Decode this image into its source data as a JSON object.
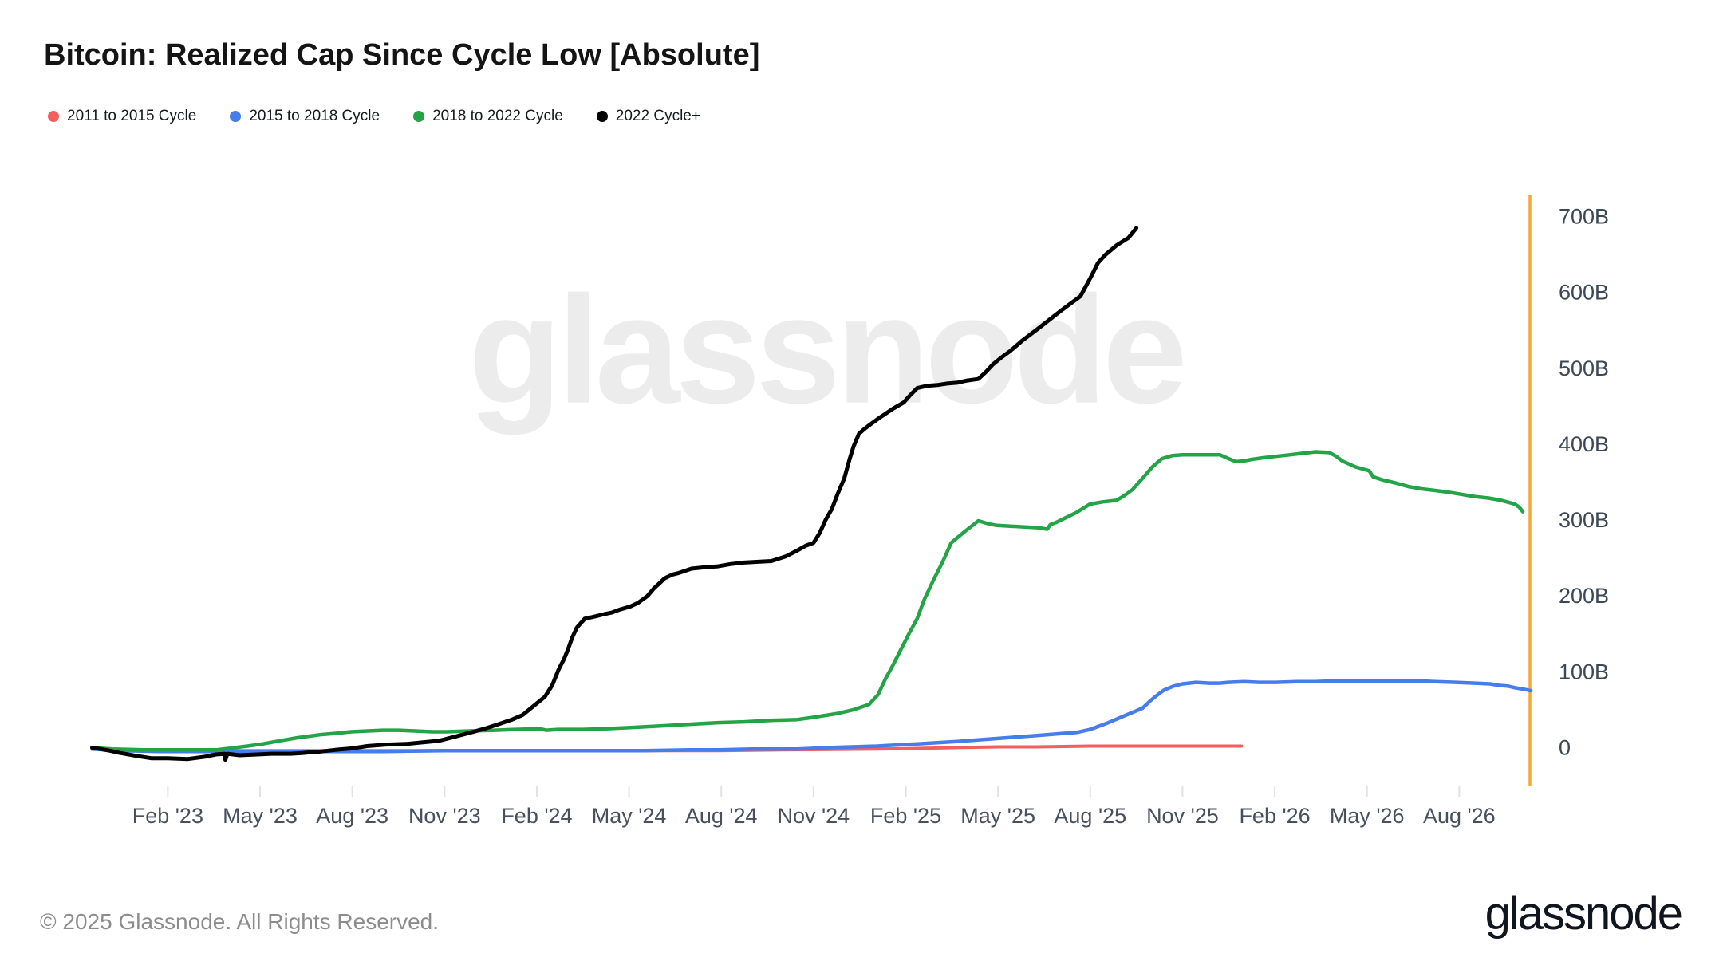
{
  "title": "Bitcoin: Realized Cap Since Cycle Low [Absolute]",
  "watermark": "glassnode",
  "footer": {
    "copyright": "© 2025 Glassnode. All Rights Reserved.",
    "logo": "glassnode"
  },
  "legend": [
    {
      "label": "2011 to 2015 Cycle",
      "color": "#f15f5f"
    },
    {
      "label": "2015 to 2018 Cycle",
      "color": "#477ceb"
    },
    {
      "label": "2018 to 2022 Cycle",
      "color": "#22a447"
    },
    {
      "label": "2022 Cycle+",
      "color": "#000000"
    }
  ],
  "chart_data": {
    "type": "line",
    "title": "Bitcoin: Realized Cap Since Cycle Low [Absolute]",
    "x_unit": "months since Jan 2023 (Feb '23 = 1), cycles time-aligned from cycle low",
    "y_unit": "USD billions above cycle low",
    "xlim": [
      -1.5,
      45.3
    ],
    "ylim": [
      -50,
      728
    ],
    "grid": false,
    "legend_position": "top-left",
    "axis_color": "#f5a73b",
    "tick_color": "#e2e2e2",
    "x_ticks": [
      {
        "t": 1,
        "label": "Feb '23"
      },
      {
        "t": 4,
        "label": "May '23"
      },
      {
        "t": 7,
        "label": "Aug '23"
      },
      {
        "t": 10,
        "label": "Nov '23"
      },
      {
        "t": 13,
        "label": "Feb '24"
      },
      {
        "t": 16,
        "label": "May '24"
      },
      {
        "t": 19,
        "label": "Aug '24"
      },
      {
        "t": 22,
        "label": "Nov '24"
      },
      {
        "t": 25,
        "label": "Feb '25"
      },
      {
        "t": 28,
        "label": "May '25"
      },
      {
        "t": 31,
        "label": "Aug '25"
      },
      {
        "t": 34,
        "label": "Nov '25"
      },
      {
        "t": 37,
        "label": "Feb '26"
      },
      {
        "t": 40,
        "label": "May '26"
      },
      {
        "t": 43,
        "label": "Aug '26"
      }
    ],
    "y_ticks": [
      {
        "v": 0,
        "label": "0"
      },
      {
        "v": 100,
        "label": "100B"
      },
      {
        "v": 200,
        "label": "200B"
      },
      {
        "v": 300,
        "label": "300B"
      },
      {
        "v": 400,
        "label": "400B"
      },
      {
        "v": 500,
        "label": "500B"
      },
      {
        "v": 600,
        "label": "600B"
      },
      {
        "v": 700,
        "label": "700B"
      }
    ],
    "series": [
      {
        "name": "2011 to 2015 Cycle",
        "color": "#f15f5f",
        "width": 4,
        "points": [
          [
            -1.46,
            -2
          ],
          [
            0,
            -3
          ],
          [
            1.5,
            -4
          ],
          [
            3.33,
            -4
          ],
          [
            6,
            -4
          ],
          [
            8,
            -4
          ],
          [
            11.11,
            -4
          ],
          [
            14,
            -4
          ],
          [
            16,
            -4
          ],
          [
            18.89,
            -4
          ],
          [
            21,
            -3
          ],
          [
            24.07,
            -2
          ],
          [
            25.5,
            -1
          ],
          [
            26.66,
            0
          ],
          [
            28,
            1
          ],
          [
            29.26,
            1
          ],
          [
            31,
            2
          ],
          [
            31.85,
            2
          ],
          [
            33,
            2
          ],
          [
            34.44,
            2
          ],
          [
            35.92,
            2
          ]
        ]
      },
      {
        "name": "2015 to 2018 Cycle",
        "color": "#477ceb",
        "width": 4.5,
        "points": [
          [
            -1.46,
            -2
          ],
          [
            -0.5,
            -4
          ],
          [
            0.74,
            -5
          ],
          [
            2,
            -5
          ],
          [
            4,
            -5
          ],
          [
            5.93,
            -5
          ],
          [
            8,
            -5
          ],
          [
            10,
            -4
          ],
          [
            12,
            -4
          ],
          [
            13.7,
            -4
          ],
          [
            15,
            -4
          ],
          [
            16.5,
            -4
          ],
          [
            18,
            -3
          ],
          [
            18.89,
            -3
          ],
          [
            20,
            -2
          ],
          [
            21.48,
            -2
          ],
          [
            22.5,
            0
          ],
          [
            24.07,
            2
          ],
          [
            25.37,
            5
          ],
          [
            26.66,
            8
          ],
          [
            27.3,
            10
          ],
          [
            27.96,
            12
          ],
          [
            28.6,
            14
          ],
          [
            29.26,
            16
          ],
          [
            29.9,
            18
          ],
          [
            30.55,
            20
          ],
          [
            31,
            24
          ],
          [
            31.59,
            33
          ],
          [
            32.11,
            42
          ],
          [
            32.7,
            52
          ],
          [
            32.96,
            62
          ],
          [
            33.2,
            70
          ],
          [
            33.4,
            76
          ],
          [
            33.7,
            81
          ],
          [
            34,
            84
          ],
          [
            34.44,
            86
          ],
          [
            34.89,
            85
          ],
          [
            35.2,
            85
          ],
          [
            35.48,
            86
          ],
          [
            36,
            87
          ],
          [
            36.5,
            86
          ],
          [
            37.04,
            86
          ],
          [
            37.7,
            87
          ],
          [
            38.33,
            87
          ],
          [
            39,
            88
          ],
          [
            39.63,
            88
          ],
          [
            40.3,
            88
          ],
          [
            40.92,
            88
          ],
          [
            41.6,
            88
          ],
          [
            42.22,
            87
          ],
          [
            42.9,
            86
          ],
          [
            43.51,
            85
          ],
          [
            44,
            84
          ],
          [
            44.29,
            82
          ],
          [
            44.6,
            81
          ],
          [
            44.81,
            79
          ],
          [
            45.1,
            77
          ],
          [
            45.33,
            75
          ]
        ]
      },
      {
        "name": "2018 to 2022 Cycle",
        "color": "#22a447",
        "width": 4.5,
        "points": [
          [
            -1.46,
            0
          ],
          [
            -0.8,
            -2
          ],
          [
            0.22,
            -3
          ],
          [
            1.2,
            -3
          ],
          [
            2,
            -3
          ],
          [
            2.56,
            -3
          ],
          [
            3,
            -1
          ],
          [
            3.59,
            2
          ],
          [
            4.1,
            5
          ],
          [
            4.63,
            9
          ],
          [
            5.2,
            13
          ],
          [
            5.93,
            17
          ],
          [
            6.5,
            19
          ],
          [
            6.96,
            21
          ],
          [
            7.5,
            22
          ],
          [
            8,
            23
          ],
          [
            8.5,
            23
          ],
          [
            9.04,
            22
          ],
          [
            9.6,
            21
          ],
          [
            10.07,
            21
          ],
          [
            10.8,
            22
          ],
          [
            11.63,
            23
          ],
          [
            12.3,
            24
          ],
          [
            13.1,
            25
          ],
          [
            13.3,
            23
          ],
          [
            13.7,
            24
          ],
          [
            14.5,
            24
          ],
          [
            15.26,
            25
          ],
          [
            16.3,
            27
          ],
          [
            17.2,
            29
          ],
          [
            18.03,
            31
          ],
          [
            18.9,
            33
          ],
          [
            19.74,
            34
          ],
          [
            20.6,
            36
          ],
          [
            21.48,
            37
          ],
          [
            22,
            40
          ],
          [
            22.78,
            45
          ],
          [
            23.3,
            50
          ],
          [
            23.81,
            57
          ],
          [
            24.1,
            70
          ],
          [
            24.33,
            90
          ],
          [
            24.6,
            110
          ],
          [
            24.85,
            130
          ],
          [
            25.1,
            150
          ],
          [
            25.37,
            170
          ],
          [
            25.6,
            195
          ],
          [
            25.89,
            220
          ],
          [
            26.2,
            245
          ],
          [
            26.48,
            270
          ],
          [
            26.92,
            285
          ],
          [
            27.36,
            299
          ],
          [
            27.7,
            295
          ],
          [
            27.96,
            293
          ],
          [
            28.4,
            292
          ],
          [
            28.87,
            291
          ],
          [
            29.3,
            290
          ],
          [
            29.6,
            288
          ],
          [
            29.7,
            294
          ],
          [
            29.9,
            297
          ],
          [
            30.2,
            303
          ],
          [
            30.55,
            310
          ],
          [
            30.99,
            321
          ],
          [
            31.4,
            324
          ],
          [
            31.85,
            326
          ],
          [
            32.1,
            332
          ],
          [
            32.37,
            340
          ],
          [
            32.7,
            355
          ],
          [
            33.02,
            370
          ],
          [
            33.33,
            381
          ],
          [
            33.67,
            385
          ],
          [
            34,
            386
          ],
          [
            34.44,
            386
          ],
          [
            34.8,
            386
          ],
          [
            35.22,
            386
          ],
          [
            35.5,
            381
          ],
          [
            35.74,
            377
          ],
          [
            36,
            378
          ],
          [
            36.26,
            380
          ],
          [
            36.6,
            382
          ],
          [
            37.04,
            384
          ],
          [
            37.48,
            386
          ],
          [
            37.9,
            388
          ],
          [
            38.33,
            390
          ],
          [
            38.77,
            389
          ],
          [
            39,
            384
          ],
          [
            39.19,
            378
          ],
          [
            39.63,
            370
          ],
          [
            40.07,
            365
          ],
          [
            40.15,
            360
          ],
          [
            40.2,
            357
          ],
          [
            40.5,
            353
          ],
          [
            40.92,
            349
          ],
          [
            41.36,
            344
          ],
          [
            41.8,
            341
          ],
          [
            42.22,
            339
          ],
          [
            42.6,
            337
          ],
          [
            43.07,
            334
          ],
          [
            43.5,
            331
          ],
          [
            43.95,
            329
          ],
          [
            44.37,
            326
          ],
          [
            44.81,
            321
          ],
          [
            44.95,
            317
          ],
          [
            45.07,
            311
          ]
        ]
      },
      {
        "name": "2022 Cycle+",
        "color": "#000000",
        "width": 5,
        "points": [
          [
            -1.46,
            0
          ],
          [
            -0.9,
            -4
          ],
          [
            -0.56,
            -7
          ],
          [
            0,
            -11
          ],
          [
            0.48,
            -14
          ],
          [
            1,
            -14
          ],
          [
            1.65,
            -15
          ],
          [
            2.2,
            -12
          ],
          [
            2.56,
            -9
          ],
          [
            2.85,
            -8
          ],
          [
            2.87,
            -16
          ],
          [
            2.94,
            -8
          ],
          [
            3.33,
            -10
          ],
          [
            3.9,
            -9
          ],
          [
            4.37,
            -8
          ],
          [
            5,
            -8
          ],
          [
            5.41,
            -7
          ],
          [
            6,
            -5
          ],
          [
            6.44,
            -3
          ],
          [
            7,
            -1
          ],
          [
            7.48,
            2
          ],
          [
            8.1,
            4
          ],
          [
            8.78,
            5
          ],
          [
            9.3,
            7
          ],
          [
            9.81,
            9
          ],
          [
            10.3,
            14
          ],
          [
            10.85,
            20
          ],
          [
            11.3,
            25
          ],
          [
            11.76,
            31
          ],
          [
            12.2,
            37
          ],
          [
            12.54,
            43
          ],
          [
            12.9,
            55
          ],
          [
            13.26,
            67
          ],
          [
            13.5,
            82
          ],
          [
            13.7,
            102
          ],
          [
            13.9,
            118
          ],
          [
            14.02,
            130
          ],
          [
            14.15,
            145
          ],
          [
            14.3,
            158
          ],
          [
            14.56,
            170
          ],
          [
            14.8,
            172
          ],
          [
            15,
            174
          ],
          [
            15.2,
            176
          ],
          [
            15.44,
            178
          ],
          [
            15.7,
            182
          ],
          [
            16.04,
            186
          ],
          [
            16.3,
            191
          ],
          [
            16.6,
            200
          ],
          [
            16.81,
            210
          ],
          [
            17,
            217
          ],
          [
            17.15,
            223
          ],
          [
            17.4,
            228
          ],
          [
            17.59,
            230
          ],
          [
            18.03,
            236
          ],
          [
            18.5,
            238
          ],
          [
            18.89,
            239
          ],
          [
            19.3,
            242
          ],
          [
            19.74,
            244
          ],
          [
            20.2,
            245
          ],
          [
            20.63,
            246
          ],
          [
            21.09,
            252
          ],
          [
            21.48,
            260
          ],
          [
            21.74,
            266
          ],
          [
            22,
            270
          ],
          [
            22.2,
            283
          ],
          [
            22.39,
            300
          ],
          [
            22.6,
            315
          ],
          [
            22.78,
            334
          ],
          [
            23,
            355
          ],
          [
            23.17,
            380
          ],
          [
            23.3,
            397
          ],
          [
            23.48,
            414
          ],
          [
            23.65,
            420
          ],
          [
            23.81,
            425
          ],
          [
            24.15,
            435
          ],
          [
            24.59,
            447
          ],
          [
            24.93,
            455
          ],
          [
            25.15,
            465
          ],
          [
            25.37,
            474
          ],
          [
            25.7,
            477
          ],
          [
            26.02,
            478
          ],
          [
            26.35,
            480
          ],
          [
            26.66,
            481
          ],
          [
            27,
            484
          ],
          [
            27.36,
            486
          ],
          [
            27.6,
            495
          ],
          [
            27.83,
            505
          ],
          [
            28.1,
            514
          ],
          [
            28.4,
            523
          ],
          [
            28.8,
            537
          ],
          [
            29.26,
            551
          ],
          [
            29.7,
            565
          ],
          [
            30.11,
            578
          ],
          [
            30.68,
            595
          ],
          [
            30.99,
            618
          ],
          [
            31.25,
            639
          ],
          [
            31.5,
            650
          ],
          [
            31.85,
            662
          ],
          [
            32.24,
            672
          ],
          [
            32.5,
            685
          ]
        ]
      }
    ]
  }
}
